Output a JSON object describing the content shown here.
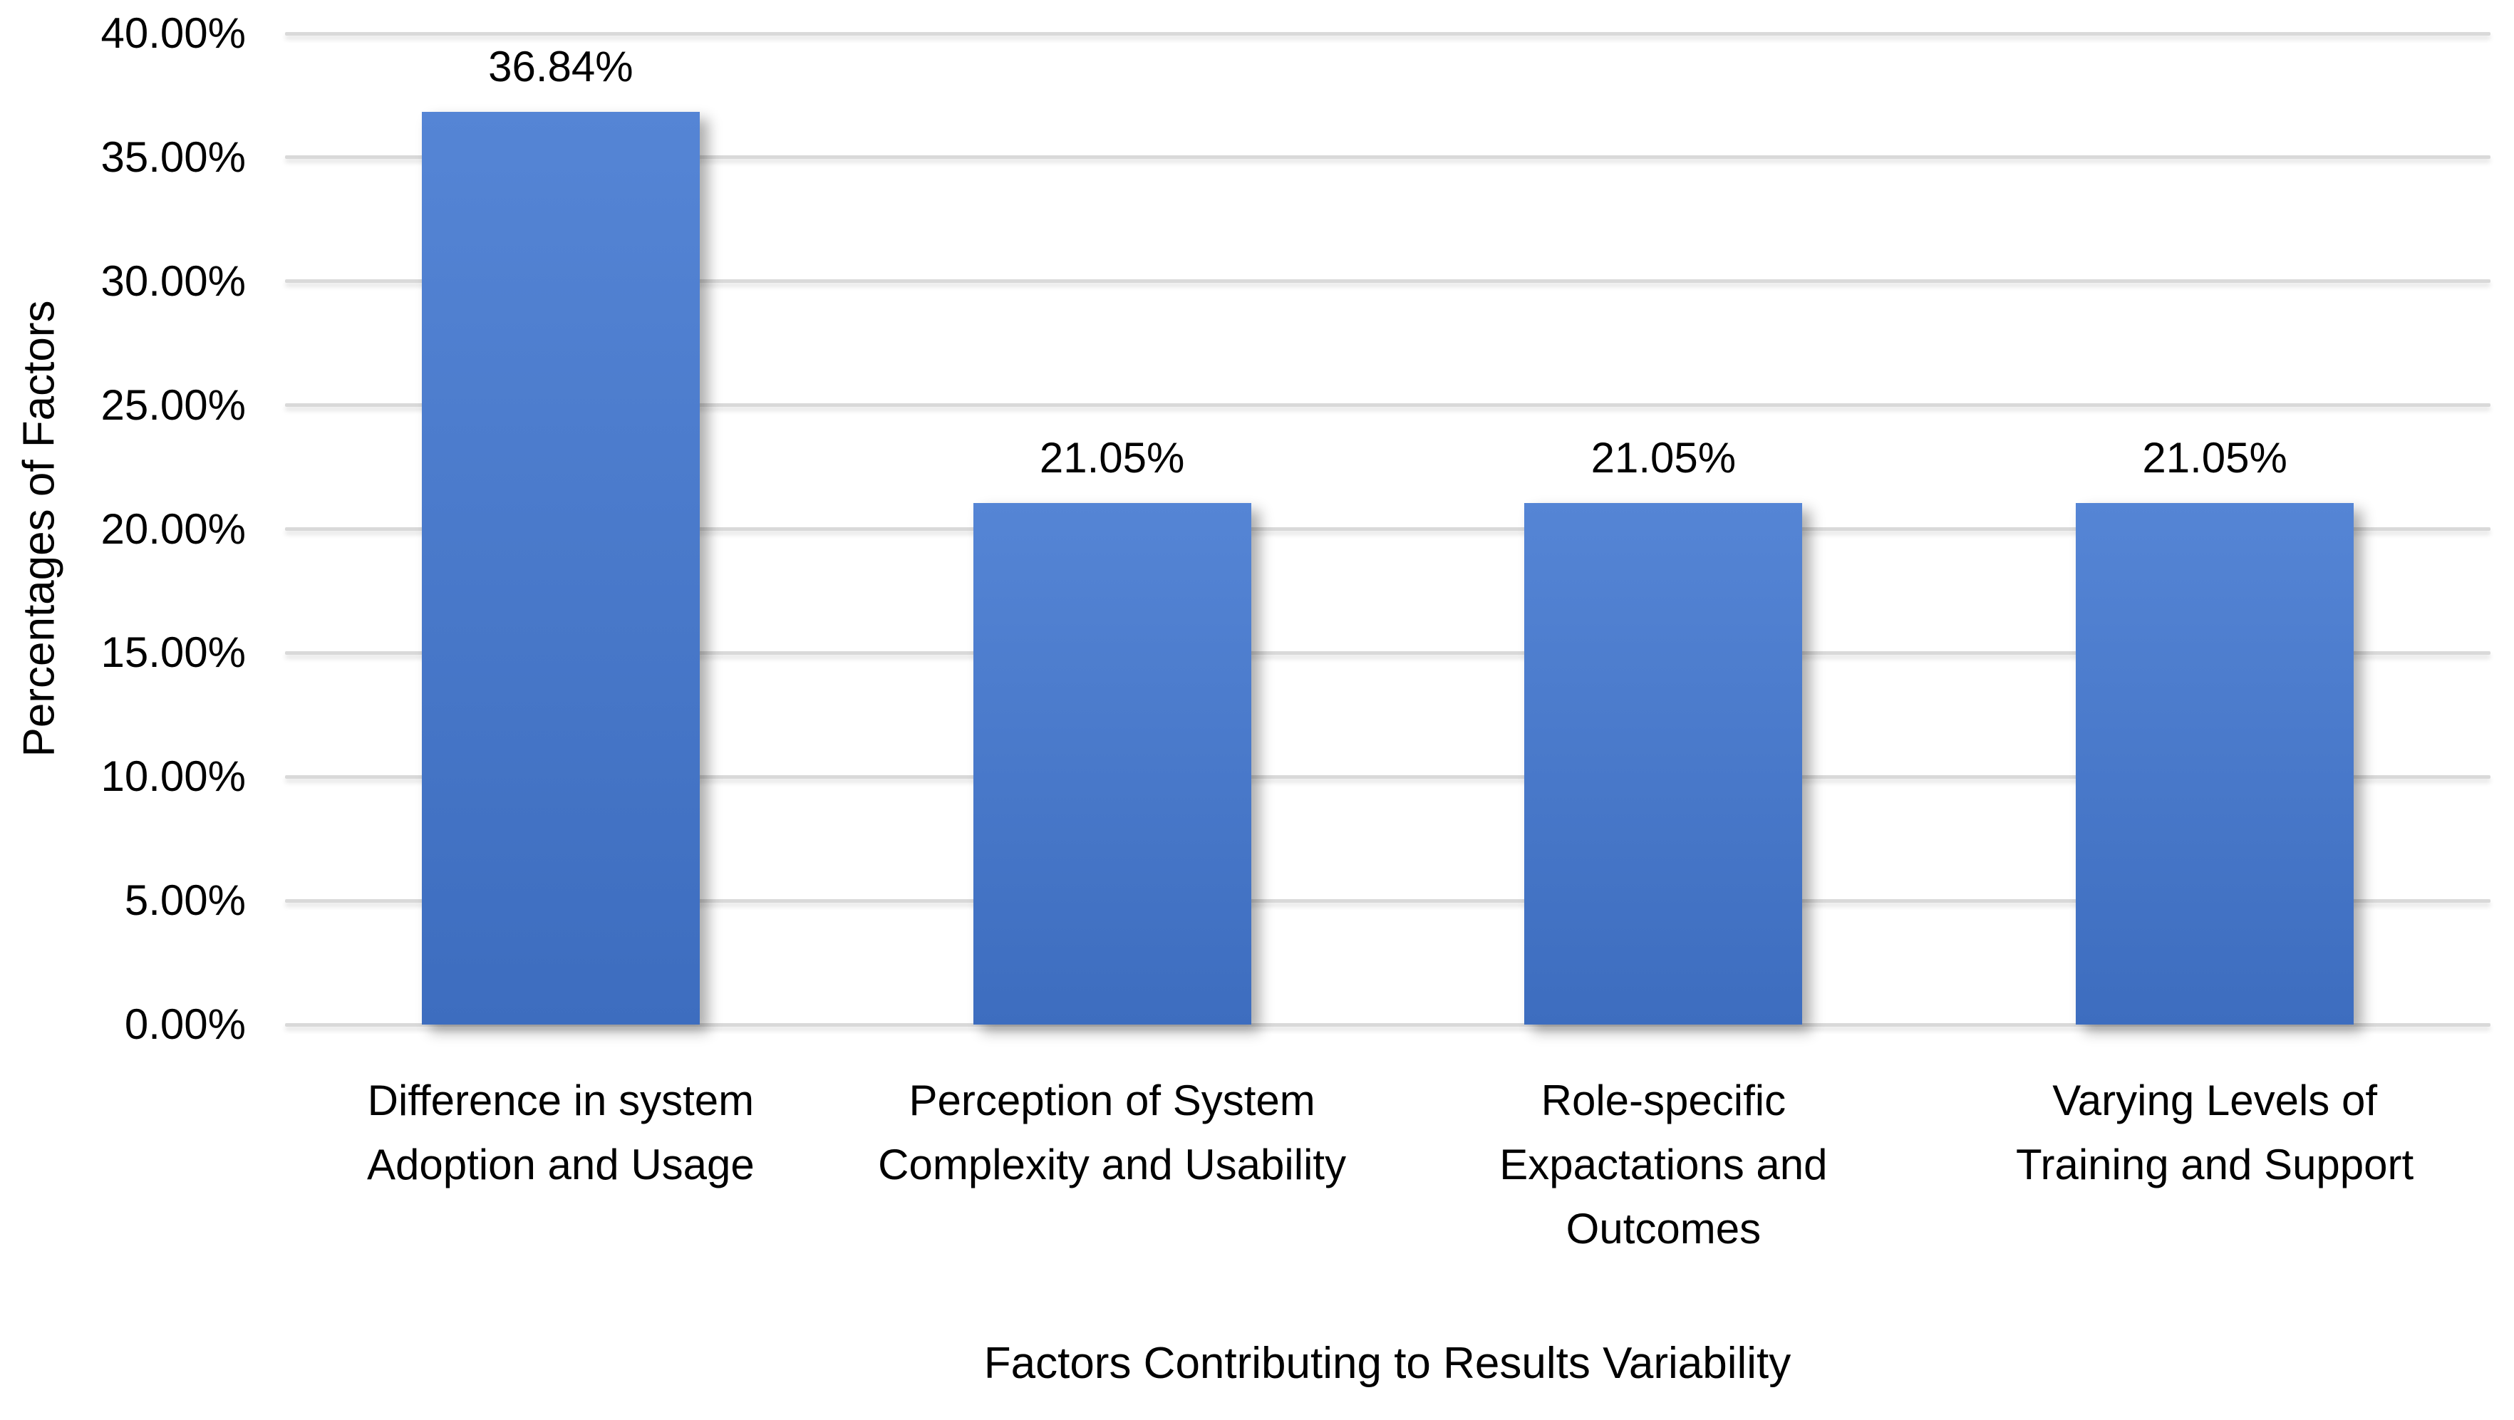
{
  "chart_data": {
    "type": "bar",
    "title": "",
    "xlabel": "Factors Contributing to Results Variability",
    "ylabel": "Percentages of Factors",
    "categories": [
      [
        "Difference in system",
        "Adoption and Usage"
      ],
      [
        "Perception of System",
        "Complexity and Usability"
      ],
      [
        "Role-specific",
        "Expactations and",
        "Outcomes"
      ],
      [
        "Varying Levels of",
        "Training and Support"
      ]
    ],
    "values": [
      36.84,
      21.05,
      21.05,
      21.05
    ],
    "data_labels": [
      "36.84%",
      "21.05%",
      "21.05%",
      "21.05%"
    ],
    "yticks": {
      "values": [
        0,
        5,
        10,
        15,
        20,
        25,
        30,
        35,
        40
      ],
      "labels": [
        "0.00%",
        "5.00%",
        "10.00%",
        "15.00%",
        "20.00%",
        "25.00%",
        "30.00%",
        "35.00%",
        "40.00%"
      ]
    },
    "ylim": [
      0,
      40
    ],
    "grid": true,
    "legend": "none",
    "colors": {
      "bar_top": "#5585d5",
      "bar_bottom": "#3d6dbf",
      "gridline": "#d9d9d9",
      "text": "#000000",
      "background": "#ffffff"
    }
  }
}
